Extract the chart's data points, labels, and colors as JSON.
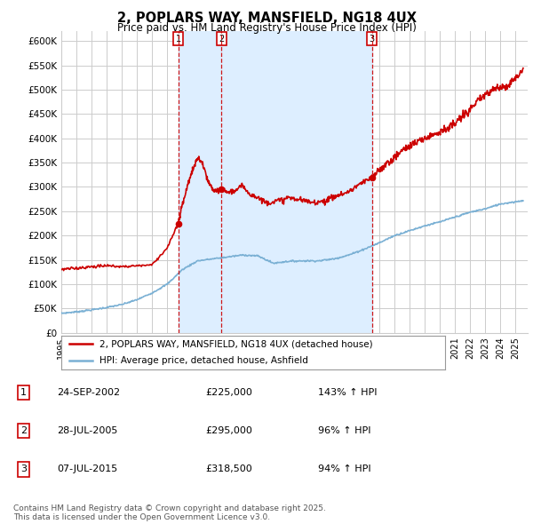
{
  "title": "2, POPLARS WAY, MANSFIELD, NG18 4UX",
  "subtitle": "Price paid vs. HM Land Registry's House Price Index (HPI)",
  "ylim": [
    0,
    620000
  ],
  "yticks": [
    0,
    50000,
    100000,
    150000,
    200000,
    250000,
    300000,
    350000,
    400000,
    450000,
    500000,
    550000,
    600000
  ],
  "ytick_labels": [
    "£0",
    "£50K",
    "£100K",
    "£150K",
    "£200K",
    "£250K",
    "£300K",
    "£350K",
    "£400K",
    "£450K",
    "£500K",
    "£550K",
    "£600K"
  ],
  "background_color": "#ffffff",
  "grid_color": "#cccccc",
  "shade_color": "#ddeeff",
  "sale_markers": [
    {
      "label": "1",
      "date_x": 2002.73,
      "price": 225000
    },
    {
      "label": "2",
      "date_x": 2005.57,
      "price": 295000
    },
    {
      "label": "3",
      "date_x": 2015.52,
      "price": 318500
    }
  ],
  "legend_entries": [
    {
      "color": "#cc0000",
      "label": "2, POPLARS WAY, MANSFIELD, NG18 4UX (detached house)"
    },
    {
      "color": "#7ab0d4",
      "label": "HPI: Average price, detached house, Ashfield"
    }
  ],
  "table_rows": [
    {
      "num": "1",
      "date": "24-SEP-2002",
      "price": "£225,000",
      "hpi": "143% ↑ HPI"
    },
    {
      "num": "2",
      "date": "28-JUL-2005",
      "price": "£295,000",
      "hpi": "96% ↑ HPI"
    },
    {
      "num": "3",
      "date": "07-JUL-2015",
      "price": "£318,500",
      "hpi": "94% ↑ HPI"
    }
  ],
  "footnote": "Contains HM Land Registry data © Crown copyright and database right 2025.\nThis data is licensed under the Open Government Licence v3.0.",
  "red_line_color": "#cc0000",
  "blue_line_color": "#7ab0d4",
  "vline_color": "#cc0000",
  "marker_box_color": "#cc0000",
  "xlim": [
    1995,
    2025.8
  ],
  "hpi_blue_knots_x": [
    1995,
    1996,
    1997,
    1998,
    1999,
    2000,
    2001,
    2002,
    2003,
    2004,
    2005,
    2006,
    2007,
    2008,
    2009,
    2010,
    2011,
    2012,
    2013,
    2014,
    2015,
    2016,
    2017,
    2018,
    2019,
    2020,
    2021,
    2022,
    2023,
    2024,
    2025.5
  ],
  "hpi_blue_knots_y": [
    40000,
    43000,
    47000,
    52000,
    58000,
    68000,
    82000,
    100000,
    130000,
    148000,
    152000,
    156000,
    160000,
    158000,
    143000,
    147000,
    148000,
    148000,
    152000,
    160000,
    172000,
    185000,
    200000,
    210000,
    220000,
    228000,
    238000,
    248000,
    255000,
    265000,
    272000
  ],
  "red_seg1_knots_x": [
    1995,
    1996,
    1997,
    1998,
    1999,
    2000,
    2001,
    2002,
    2002.73
  ],
  "red_seg1_knots_y": [
    130000,
    133000,
    136000,
    138000,
    136000,
    138000,
    140000,
    175000,
    225000
  ],
  "red_seg2_knots_x": [
    2002.73,
    2003,
    2003.5,
    2004,
    2004.3,
    2004.7,
    2005,
    2005.3,
    2005.57
  ],
  "red_seg2_knots_y": [
    225000,
    265000,
    320000,
    360000,
    350000,
    310000,
    295000,
    290000,
    295000
  ],
  "red_seg3_knots_x": [
    2005.57,
    2006,
    2006.5,
    2007,
    2007.5,
    2008,
    2008.5,
    2009,
    2009.5,
    2010,
    2010.5,
    2011,
    2011.5,
    2012,
    2012.5,
    2013,
    2013.5,
    2014,
    2014.5,
    2015,
    2015.52
  ],
  "red_seg3_knots_y": [
    295000,
    290000,
    292000,
    302000,
    285000,
    278000,
    268000,
    270000,
    272000,
    278000,
    275000,
    272000,
    268000,
    270000,
    272000,
    280000,
    285000,
    290000,
    302000,
    310000,
    318500
  ],
  "red_seg4_knots_x": [
    2015.52,
    2016,
    2016.5,
    2017,
    2017.5,
    2018,
    2018.5,
    2019,
    2019.5,
    2020,
    2020.5,
    2021,
    2021.5,
    2022,
    2022.5,
    2023,
    2023.5,
    2024,
    2024.5,
    2025.5
  ],
  "red_seg4_knots_y": [
    318500,
    335000,
    348000,
    360000,
    375000,
    385000,
    392000,
    400000,
    408000,
    415000,
    420000,
    430000,
    445000,
    460000,
    475000,
    490000,
    500000,
    505000,
    510000,
    540000
  ]
}
